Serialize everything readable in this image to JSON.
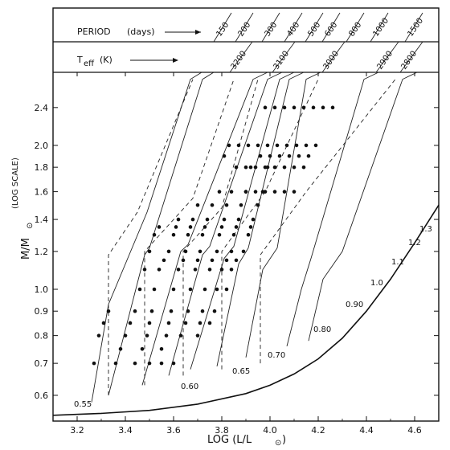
{
  "chart_data": {
    "type": "scatter",
    "xlabel": "LOG (L/L",
    "xlabel_sub": "⊙",
    "xlabel_close": ")",
    "ylabel": "M/M",
    "ylabel_sub": "⊙",
    "ylabel_scale_note": "(LOG SCALE)",
    "xlim": [
      3.1,
      4.7
    ],
    "ylim": [
      0.53,
      2.8
    ],
    "x_ticks": [
      3.2,
      3.4,
      3.6,
      3.8,
      4.0,
      4.2,
      4.4,
      4.6
    ],
    "x_tick_labels": [
      "3.2",
      "3.4",
      "3.6",
      "3.8",
      "4.0",
      "4.2",
      "4.4",
      "4.6"
    ],
    "y_ticks": [
      0.6,
      0.7,
      0.8,
      0.9,
      1.0,
      1.2,
      1.4,
      1.6,
      1.8,
      2.0,
      2.4
    ],
    "y_tick_labels": [
      "0.6",
      "0.7",
      "0.8",
      "0.9",
      "1.0",
      "1.2",
      "1.4",
      "1.6",
      "1.8",
      "2.0",
      "2.4"
    ],
    "y_scale": "log",
    "grid": false,
    "header_rows": [
      {
        "label": "PERIOD",
        "unit": "(days)"
      },
      {
        "label": "T",
        "label_sub": "eff",
        "unit": "(K)"
      }
    ],
    "period_labels": [
      "150",
      "200",
      "300",
      "400",
      "500",
      "600",
      "800",
      "1000",
      "1500"
    ],
    "teff_labels": [
      "3200",
      "3100",
      "3000",
      "2900",
      "2800"
    ],
    "boundary_curve_labels": [
      "0.55",
      "0.60",
      "0.65",
      "0.70",
      "0.80",
      "0.90",
      "1.0",
      "1.1",
      "1.2",
      "1.3"
    ],
    "boundary_curve": [
      [
        3.1,
        0.545
      ],
      [
        3.3,
        0.55
      ],
      [
        3.5,
        0.558
      ],
      [
        3.7,
        0.575
      ],
      [
        3.9,
        0.605
      ],
      [
        4.0,
        0.63
      ],
      [
        4.1,
        0.665
      ],
      [
        4.2,
        0.715
      ],
      [
        4.3,
        0.79
      ],
      [
        4.4,
        0.9
      ],
      [
        4.5,
        1.05
      ],
      [
        4.6,
        1.25
      ],
      [
        4.7,
        1.5
      ]
    ],
    "period_lines": [
      [
        [
          3.26,
          0.58
        ],
        [
          3.33,
          0.93
        ],
        [
          3.49,
          1.45
        ],
        [
          3.67,
          2.75
        ]
      ],
      [
        [
          3.33,
          0.6
        ],
        [
          3.48,
          1.18
        ],
        [
          3.5,
          1.22
        ],
        [
          3.72,
          2.75
        ]
      ],
      [
        [
          3.47,
          0.63
        ],
        [
          3.63,
          1.2
        ],
        [
          3.66,
          1.24
        ],
        [
          3.93,
          2.75
        ]
      ],
      [
        [
          3.58,
          0.66
        ],
        [
          3.72,
          1.18
        ],
        [
          3.75,
          1.23
        ],
        [
          3.99,
          2.75
        ]
      ],
      [
        [
          3.67,
          0.68
        ],
        [
          3.81,
          1.16
        ],
        [
          3.85,
          1.23
        ],
        [
          4.04,
          2.75
        ]
      ],
      [
        [
          3.78,
          0.69
        ],
        [
          3.87,
          1.13
        ],
        [
          3.91,
          1.22
        ],
        [
          4.08,
          2.75
        ]
      ],
      [
        [
          3.9,
          0.72
        ],
        [
          3.97,
          1.1
        ],
        [
          4.03,
          1.22
        ],
        [
          4.15,
          2.75
        ]
      ],
      [
        [
          4.07,
          0.76
        ],
        [
          4.13,
          1.0
        ],
        [
          4.17,
          1.16
        ],
        [
          4.39,
          2.75
        ]
      ],
      [
        [
          4.16,
          0.78
        ],
        [
          4.22,
          1.05
        ],
        [
          4.3,
          1.2
        ],
        [
          4.55,
          2.75
        ]
      ]
    ],
    "teff_lines": [
      [
        [
          3.33,
          0.6
        ],
        [
          3.33,
          1.18
        ],
        [
          3.45,
          1.45
        ],
        [
          3.68,
          2.75
        ]
      ],
      [
        [
          3.48,
          0.63
        ],
        [
          3.48,
          1.2
        ],
        [
          3.68,
          1.55
        ],
        [
          3.85,
          2.75
        ]
      ],
      [
        [
          3.64,
          0.66
        ],
        [
          3.64,
          1.2
        ],
        [
          3.8,
          1.48
        ],
        [
          3.95,
          2.75
        ]
      ],
      [
        [
          3.8,
          0.68
        ],
        [
          3.8,
          1.2
        ],
        [
          3.98,
          1.6
        ],
        [
          4.2,
          2.75
        ]
      ],
      [
        [
          3.96,
          0.7
        ],
        [
          3.96,
          1.18
        ],
        [
          4.15,
          1.6
        ],
        [
          4.52,
          2.75
        ]
      ]
    ],
    "points": [
      [
        3.27,
        0.7
      ],
      [
        3.29,
        0.8
      ],
      [
        3.31,
        0.85
      ],
      [
        3.33,
        0.9
      ],
      [
        3.36,
        0.7
      ],
      [
        3.38,
        0.75
      ],
      [
        3.4,
        0.8
      ],
      [
        3.42,
        0.85
      ],
      [
        3.44,
        0.9
      ],
      [
        3.46,
        1.0
      ],
      [
        3.48,
        1.1
      ],
      [
        3.5,
        1.2
      ],
      [
        3.52,
        1.3
      ],
      [
        3.54,
        1.35
      ],
      [
        3.44,
        0.7
      ],
      [
        3.47,
        0.75
      ],
      [
        3.49,
        0.8
      ],
      [
        3.5,
        0.85
      ],
      [
        3.51,
        0.9
      ],
      [
        3.52,
        1.0
      ],
      [
        3.54,
        1.1
      ],
      [
        3.56,
        1.15
      ],
      [
        3.58,
        1.2
      ],
      [
        3.6,
        1.3
      ],
      [
        3.61,
        1.35
      ],
      [
        3.62,
        1.4
      ],
      [
        3.5,
        0.7
      ],
      [
        3.55,
        0.75
      ],
      [
        3.57,
        0.8
      ],
      [
        3.58,
        0.85
      ],
      [
        3.59,
        0.9
      ],
      [
        3.6,
        1.0
      ],
      [
        3.62,
        1.1
      ],
      [
        3.64,
        1.15
      ],
      [
        3.65,
        1.2
      ],
      [
        3.66,
        1.3
      ],
      [
        3.67,
        1.35
      ],
      [
        3.68,
        1.4
      ],
      [
        3.7,
        1.5
      ],
      [
        3.55,
        0.7
      ],
      [
        3.6,
        0.7
      ],
      [
        3.63,
        0.8
      ],
      [
        3.65,
        0.85
      ],
      [
        3.66,
        0.9
      ],
      [
        3.67,
        1.0
      ],
      [
        3.69,
        1.1
      ],
      [
        3.7,
        1.15
      ],
      [
        3.71,
        1.2
      ],
      [
        3.72,
        1.3
      ],
      [
        3.73,
        1.35
      ],
      [
        3.74,
        1.4
      ],
      [
        3.76,
        1.5
      ],
      [
        3.79,
        1.6
      ],
      [
        3.7,
        0.8
      ],
      [
        3.71,
        0.85
      ],
      [
        3.72,
        0.9
      ],
      [
        3.73,
        1.0
      ],
      [
        3.75,
        1.1
      ],
      [
        3.76,
        1.15
      ],
      [
        3.78,
        1.2
      ],
      [
        3.79,
        1.3
      ],
      [
        3.8,
        1.35
      ],
      [
        3.81,
        1.4
      ],
      [
        3.82,
        1.5
      ],
      [
        3.84,
        1.6
      ],
      [
        3.75,
        0.85
      ],
      [
        3.77,
        0.9
      ],
      [
        3.78,
        1.0
      ],
      [
        3.8,
        1.1
      ],
      [
        3.82,
        1.15
      ],
      [
        3.84,
        1.2
      ],
      [
        3.85,
        1.3
      ],
      [
        3.86,
        1.35
      ],
      [
        3.87,
        1.4
      ],
      [
        3.88,
        1.5
      ],
      [
        3.9,
        1.6
      ],
      [
        3.92,
        1.8
      ],
      [
        3.82,
        1.0
      ],
      [
        3.84,
        1.1
      ],
      [
        3.86,
        1.15
      ],
      [
        3.89,
        1.2
      ],
      [
        3.91,
        1.3
      ],
      [
        3.92,
        1.35
      ],
      [
        3.93,
        1.4
      ],
      [
        3.95,
        1.5
      ],
      [
        3.97,
        1.6
      ],
      [
        3.99,
        1.8
      ],
      [
        3.98,
        2.4
      ],
      [
        3.81,
        1.9
      ],
      [
        3.83,
        2.0
      ],
      [
        3.87,
        2.0
      ],
      [
        3.91,
        2.0
      ],
      [
        3.95,
        2.0
      ],
      [
        3.99,
        2.0
      ],
      [
        4.03,
        2.0
      ],
      [
        4.07,
        2.0
      ],
      [
        4.11,
        2.0
      ],
      [
        4.15,
        2.0
      ],
      [
        4.19,
        2.0
      ],
      [
        3.86,
        1.8
      ],
      [
        3.9,
        1.8
      ],
      [
        3.94,
        1.8
      ],
      [
        3.98,
        1.8
      ],
      [
        4.02,
        1.8
      ],
      [
        4.06,
        1.8
      ],
      [
        4.1,
        1.8
      ],
      [
        4.14,
        1.8
      ],
      [
        3.9,
        1.6
      ],
      [
        3.94,
        1.6
      ],
      [
        3.98,
        1.6
      ],
      [
        4.02,
        1.6
      ],
      [
        4.06,
        1.6
      ],
      [
        4.1,
        1.6
      ],
      [
        3.96,
        1.9
      ],
      [
        4.0,
        1.9
      ],
      [
        4.04,
        1.9
      ],
      [
        4.08,
        1.9
      ],
      [
        4.12,
        1.9
      ],
      [
        4.16,
        1.9
      ],
      [
        4.02,
        2.4
      ],
      [
        4.06,
        2.4
      ],
      [
        4.1,
        2.4
      ],
      [
        4.14,
        2.4
      ],
      [
        4.18,
        2.4
      ],
      [
        4.22,
        2.4
      ],
      [
        4.26,
        2.4
      ]
    ]
  }
}
